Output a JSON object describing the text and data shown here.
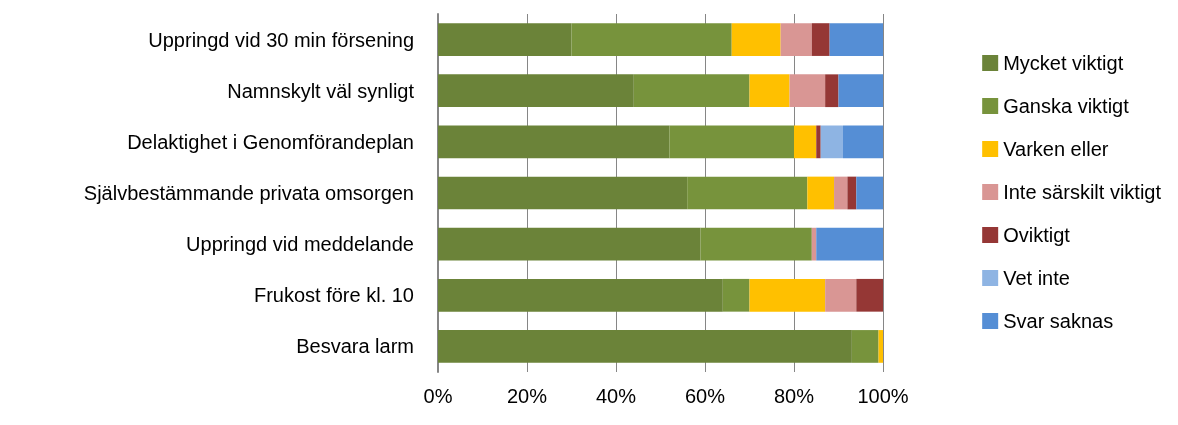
{
  "chart_data": {
    "type": "bar",
    "orientation": "horizontal",
    "stacked": true,
    "categories": [
      "Uppringd vid 30 min försening",
      "Namnskylt väl synligt",
      "Delaktighet i Genomförandeplan",
      "Självbestämmande privata omsorgen",
      "Uppringd vid meddelande",
      "Frukost före kl. 10",
      "Besvara larm"
    ],
    "series": [
      {
        "name": "Mycket viktigt",
        "color": "#6b8339",
        "values": [
          30,
          44,
          52,
          56,
          59,
          64,
          93
        ]
      },
      {
        "name": "Ganska viktigt",
        "color": "#77933c",
        "values": [
          36,
          26,
          28,
          27,
          25,
          6,
          6
        ]
      },
      {
        "name": "Varken eller",
        "color": "#ffc000",
        "values": [
          11,
          9,
          5,
          6,
          0,
          17,
          1
        ]
      },
      {
        "name": "Inte särskilt viktigt",
        "color": "#d99694",
        "values": [
          7,
          8,
          0,
          3,
          1,
          7,
          0
        ]
      },
      {
        "name": "Oviktigt",
        "color": "#953735",
        "values": [
          4,
          3,
          1,
          2,
          0,
          6,
          0
        ]
      },
      {
        "name": "Vet inte",
        "color": "#8eb4e3",
        "values": [
          0,
          0,
          5,
          0,
          0,
          0,
          0
        ]
      },
      {
        "name": "Svar saknas",
        "color": "#558ed5",
        "values": [
          12,
          10,
          9,
          6,
          15,
          0,
          0
        ]
      }
    ],
    "xlim": [
      0,
      100
    ],
    "xticks": [
      {
        "value": 0,
        "label": "0%"
      },
      {
        "value": 20,
        "label": "20%"
      },
      {
        "value": 40,
        "label": "40%"
      },
      {
        "value": 60,
        "label": "60%"
      },
      {
        "value": 80,
        "label": "80%"
      },
      {
        "value": 100,
        "label": "100%"
      }
    ],
    "grid": "x",
    "legend": "right"
  }
}
